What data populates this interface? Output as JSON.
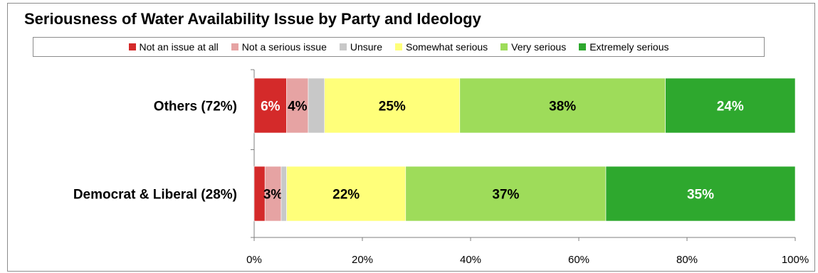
{
  "chart_data": {
    "type": "bar",
    "orientation": "horizontal",
    "stacked": true,
    "title": "Seriousness of Water Availability  Issue by Party and Ideology",
    "categories": [
      "Others (72%)",
      "Democrat & Liberal (28%)"
    ],
    "series": [
      {
        "name": "Not an issue at all",
        "color": "#d42a2a",
        "values": [
          6,
          2
        ],
        "labels": [
          "6%",
          ""
        ]
      },
      {
        "name": "Not a serious issue",
        "color": "#e6a3a3",
        "values": [
          4,
          3
        ],
        "labels": [
          "4%",
          "3%"
        ]
      },
      {
        "name": "Unsure",
        "color": "#c8c8c8",
        "values": [
          3,
          1
        ],
        "labels": [
          "",
          ""
        ]
      },
      {
        "name": "Somewhat serious",
        "color": "#ffff7a",
        "values": [
          25,
          22
        ],
        "labels": [
          "25%",
          "22%"
        ]
      },
      {
        "name": "Very serious",
        "color": "#9edc5a",
        "values": [
          38,
          37
        ],
        "labels": [
          "38%",
          "37%"
        ]
      },
      {
        "name": "Extremely serious",
        "color": "#2ea82e",
        "values": [
          24,
          35
        ],
        "labels": [
          "24%",
          "35%"
        ]
      }
    ],
    "xlim": [
      0,
      100
    ],
    "xticks": [
      "0%",
      "20%",
      "40%",
      "60%",
      "80%",
      "100%"
    ],
    "legend_position": "top",
    "grid": false
  }
}
